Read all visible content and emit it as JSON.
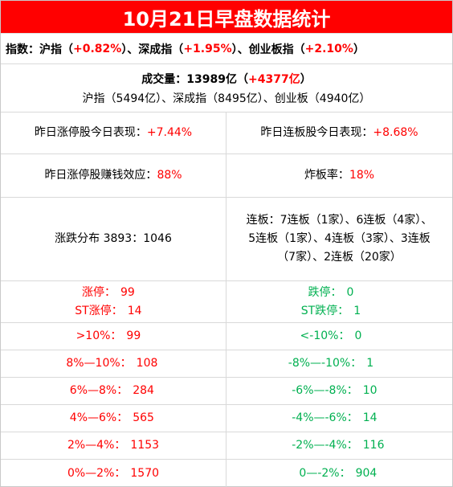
{
  "title": "10月21日早盘数据统计",
  "index_line": {
    "label": "指数：",
    "sh_name": "沪指（",
    "sh_val": "+0.82%",
    "sz_name": "）、深成指（",
    "sz_val": "+1.95%",
    "cy_name": "）、创业板指（",
    "cy_val": "+2.10%",
    "end": "）"
  },
  "volume": {
    "label": "成交量：13989亿（",
    "change": "+4377亿",
    "end": "）",
    "detail": "沪指（5494亿）、深成指（8495亿）、创业板（4940亿）"
  },
  "perf": {
    "left_label": "昨日涨停股今日表现：",
    "left_val": "+7.44%",
    "right_label": "昨日连板股今日表现：",
    "right_val": "+8.68%"
  },
  "effect": {
    "left_label": "昨日涨停股赚钱效应：",
    "left_val": "88%",
    "right_label": "炸板率：",
    "right_val": "18%"
  },
  "dist": {
    "left_text": "涨跌分布 3893：1046",
    "right_lines": [
      "连板：7连板（1家）、6连板（4家）、",
      "5连板（1家）、4连板（3家）、3连板",
      "（7家）、2连板（20家）"
    ]
  },
  "limit": {
    "up_label": "涨停：",
    "up_val": "99",
    "st_up_label": "ST涨停：",
    "st_up_val": "14",
    "down_label": "跌停：",
    "down_val": "0",
    "st_down_label": "ST跌停：",
    "st_down_val": "1"
  },
  "ranges": [
    {
      "left": ">10%：",
      "left_val": "99",
      "right": "<-10%：",
      "right_val": "0"
    },
    {
      "left": "8%—10%：",
      "left_val": "108",
      "right": "-8%—-10%：",
      "right_val": "1"
    },
    {
      "left": "6%—8%：",
      "left_val": "284",
      "right": "-6%—-8%：",
      "right_val": "10"
    },
    {
      "left": "4%—6%：",
      "left_val": "565",
      "right": "-4%—-6%：",
      "right_val": "14"
    },
    {
      "left": "2%—4%：",
      "left_val": "1153",
      "right": "-2%—-4%：",
      "right_val": "116"
    },
    {
      "left": "0%—2%：",
      "left_val": "1570",
      "right": "0—-2%：",
      "right_val": "904"
    }
  ],
  "colors": {
    "title_bg": "#ff0000",
    "up": "#ff0000",
    "down": "#00b050"
  }
}
